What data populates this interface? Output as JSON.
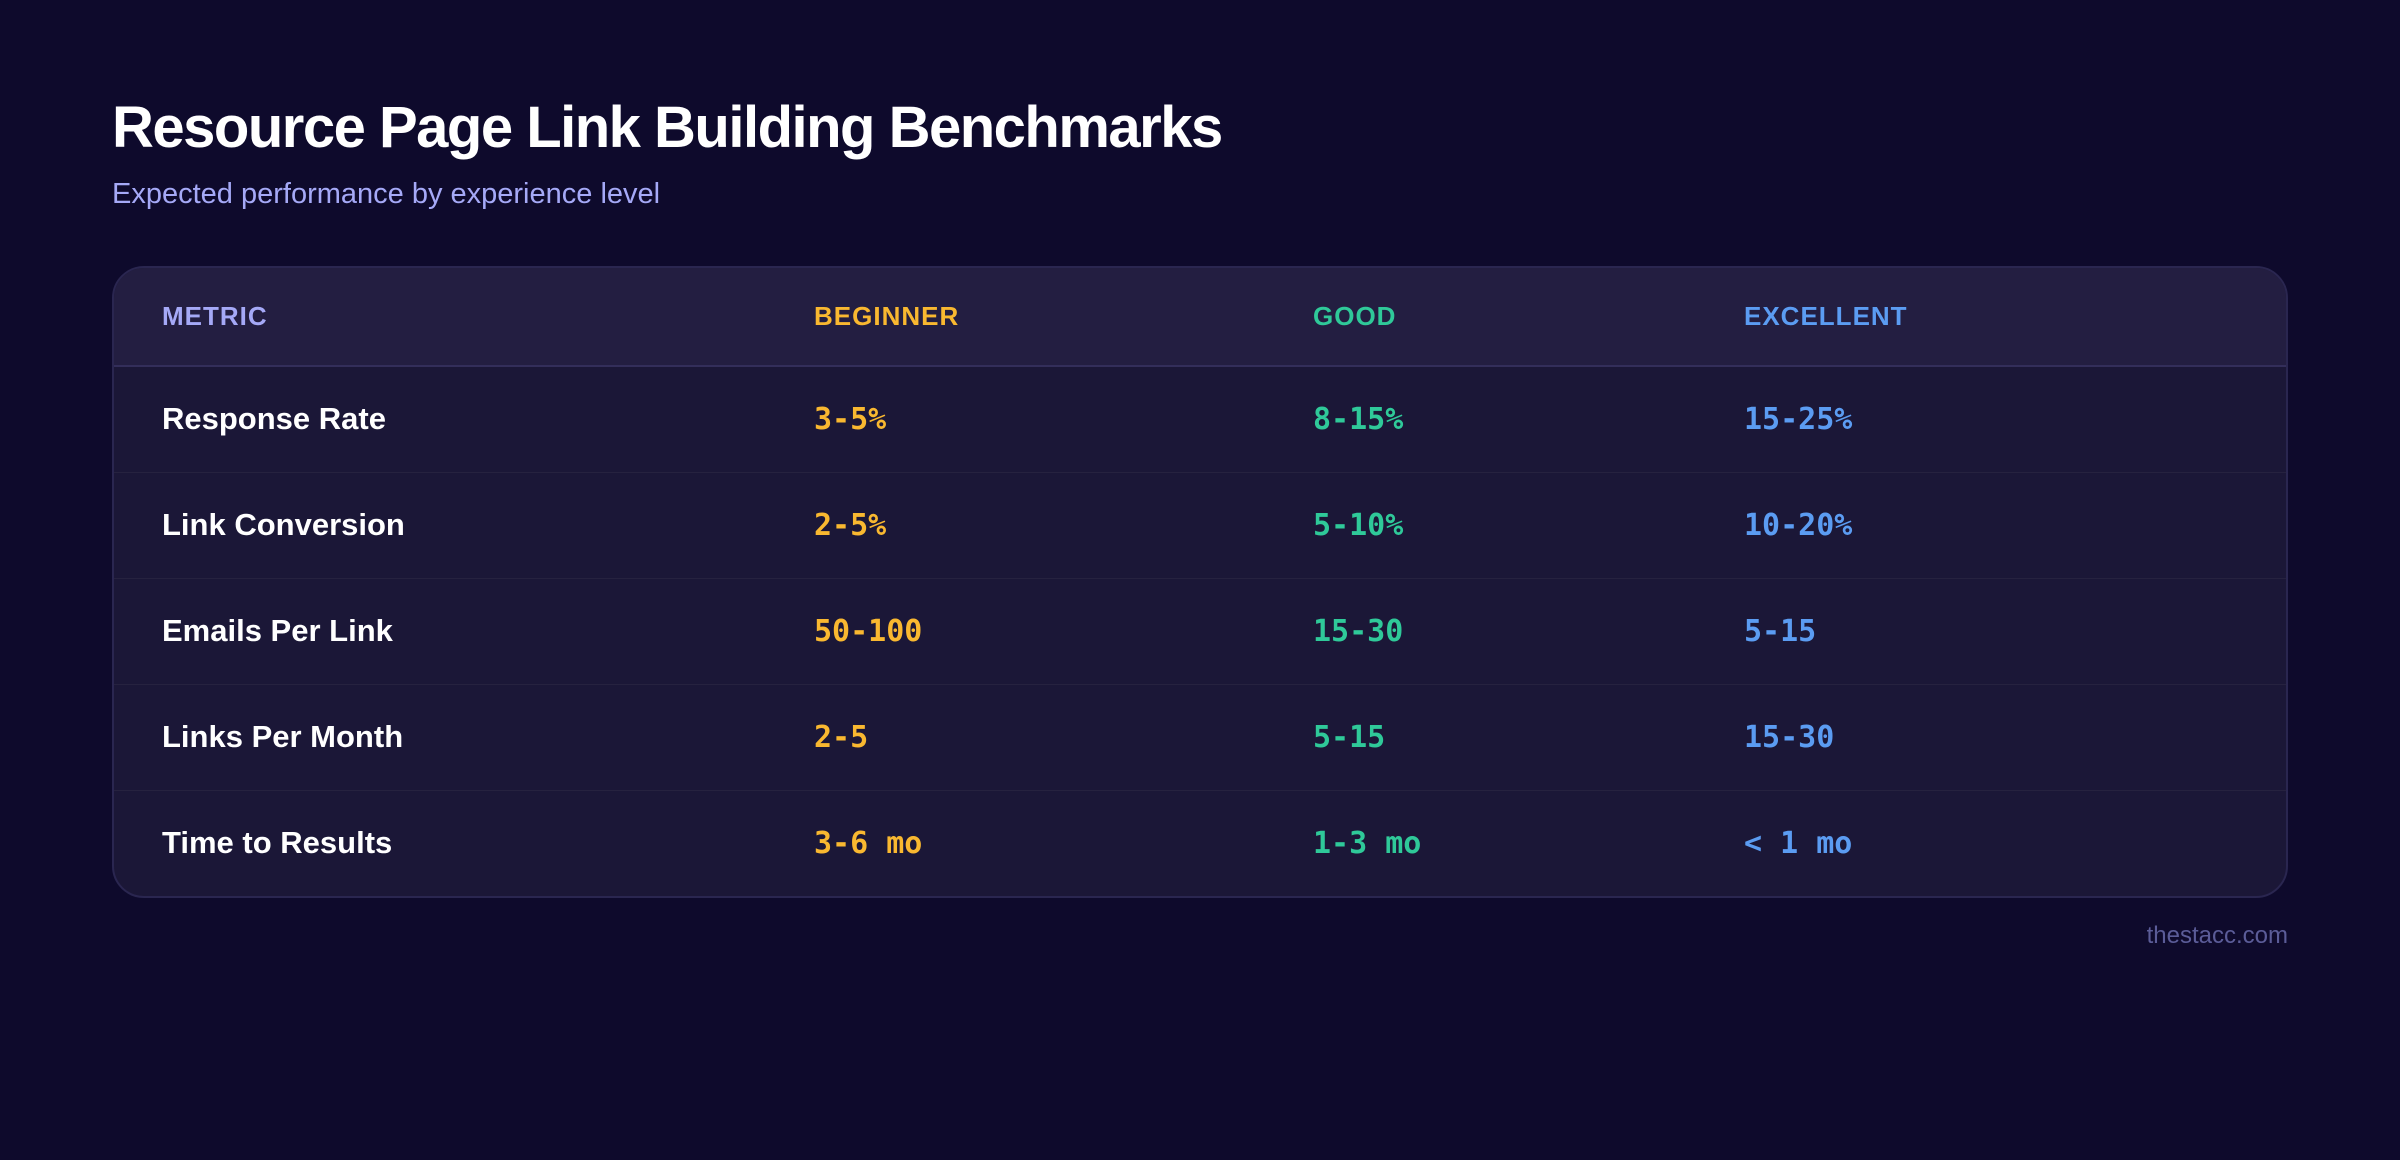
{
  "title": "Resource Page Link Building Benchmarks",
  "subtitle": "Expected performance by experience level",
  "colors": {
    "background": "#0e0a2c",
    "metric_header": "#a5a9f7",
    "beginner": "#f9b830",
    "good": "#2fc999",
    "excellent": "#5b9cf2"
  },
  "table": {
    "headers": [
      "METRIC",
      "BEGINNER",
      "GOOD",
      "EXCELLENT"
    ],
    "rows": [
      {
        "metric": "Response Rate",
        "beginner": "3-5%",
        "good": "8-15%",
        "excellent": "15-25%"
      },
      {
        "metric": "Link Conversion",
        "beginner": "2-5%",
        "good": "5-10%",
        "excellent": "10-20%"
      },
      {
        "metric": "Emails Per Link",
        "beginner": "50-100",
        "good": "15-30",
        "excellent": "5-15"
      },
      {
        "metric": "Links Per Month",
        "beginner": "2-5",
        "good": "5-15",
        "excellent": "15-30"
      },
      {
        "metric": "Time to Results",
        "beginner": "3-6 mo",
        "good": "1-3 mo",
        "excellent": "< 1 mo"
      }
    ]
  },
  "footer": {
    "credit": "thestacc.com"
  }
}
